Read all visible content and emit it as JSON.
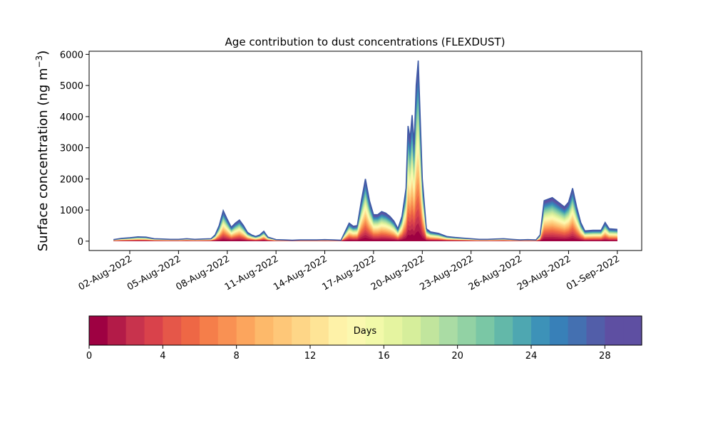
{
  "chart_data": {
    "type": "area",
    "title": "Age contribution to dust concentrations (FLEXDUST)",
    "ylabel": "Surface concentration (ng m",
    "ylabel_sup": "−3",
    "ylabel_close": ")",
    "xlabel": "",
    "ylim": [
      -300,
      6100
    ],
    "xlim": [
      "2022-07-30T12:00",
      "2022-09-02T12:00"
    ],
    "yticks": [
      0,
      1000,
      2000,
      3000,
      4000,
      5000,
      6000
    ],
    "xticks": [
      {
        "date": "2022-08-02",
        "label": "02-Aug-2022"
      },
      {
        "date": "2022-08-05",
        "label": "05-Aug-2022"
      },
      {
        "date": "2022-08-08",
        "label": "08-Aug-2022"
      },
      {
        "date": "2022-08-11",
        "label": "11-Aug-2022"
      },
      {
        "date": "2022-08-14",
        "label": "14-Aug-2022"
      },
      {
        "date": "2022-08-17",
        "label": "17-Aug-2022"
      },
      {
        "date": "2022-08-20",
        "label": "20-Aug-2022"
      },
      {
        "date": "2022-08-23",
        "label": "23-Aug-2022"
      },
      {
        "date": "2022-08-26",
        "label": "26-Aug-2022"
      },
      {
        "date": "2022-08-29",
        "label": "29-Aug-2022"
      },
      {
        "date": "2022-09-01",
        "label": "01-Sep-2022"
      }
    ],
    "stacking": "cumulative by age, 30 one-day bins (0–30 days)",
    "total": {
      "x": [
        "2022-08-01T00:00",
        "2022-08-01T12:00",
        "2022-08-02T00:00",
        "2022-08-02T12:00",
        "2022-08-03T00:00",
        "2022-08-03T12:00",
        "2022-08-04T00:00",
        "2022-08-04T12:00",
        "2022-08-05T00:00",
        "2022-08-05T12:00",
        "2022-08-06T00:00",
        "2022-08-06T12:00",
        "2022-08-07T00:00",
        "2022-08-07T06:00",
        "2022-08-07T12:00",
        "2022-08-07T18:00",
        "2022-08-08T00:00",
        "2022-08-08T06:00",
        "2022-08-08T12:00",
        "2022-08-08T18:00",
        "2022-08-09T00:00",
        "2022-08-09T06:00",
        "2022-08-09T12:00",
        "2022-08-09T18:00",
        "2022-08-10T00:00",
        "2022-08-10T06:00",
        "2022-08-10T12:00",
        "2022-08-11T00:00",
        "2022-08-11T12:00",
        "2022-08-12T00:00",
        "2022-08-12T12:00",
        "2022-08-13T00:00",
        "2022-08-13T12:00",
        "2022-08-14T00:00",
        "2022-08-14T12:00",
        "2022-08-15T00:00",
        "2022-08-15T12:00",
        "2022-08-15T18:00",
        "2022-08-16T00:00",
        "2022-08-16T06:00",
        "2022-08-16T12:00",
        "2022-08-16T18:00",
        "2022-08-17T00:00",
        "2022-08-17T06:00",
        "2022-08-17T12:00",
        "2022-08-17T18:00",
        "2022-08-18T00:00",
        "2022-08-18T06:00",
        "2022-08-18T12:00",
        "2022-08-18T18:00",
        "2022-08-19T00:00",
        "2022-08-19T03:00",
        "2022-08-19T06:00",
        "2022-08-19T09:00",
        "2022-08-19T12:00",
        "2022-08-19T15:00",
        "2022-08-19T18:00",
        "2022-08-20T00:00",
        "2022-08-20T06:00",
        "2022-08-20T12:00",
        "2022-08-21T00:00",
        "2022-08-21T12:00",
        "2022-08-22T00:00",
        "2022-08-22T12:00",
        "2022-08-23T00:00",
        "2022-08-23T12:00",
        "2022-08-24T00:00",
        "2022-08-24T12:00",
        "2022-08-25T00:00",
        "2022-08-25T12:00",
        "2022-08-26T00:00",
        "2022-08-26T12:00",
        "2022-08-27T00:00",
        "2022-08-27T06:00",
        "2022-08-27T12:00",
        "2022-08-28T00:00",
        "2022-08-28T12:00",
        "2022-08-28T18:00",
        "2022-08-29T00:00",
        "2022-08-29T06:00",
        "2022-08-29T12:00",
        "2022-08-29T18:00",
        "2022-08-30T00:00",
        "2022-08-30T12:00",
        "2022-08-31T00:00",
        "2022-08-31T06:00",
        "2022-08-31T12:00",
        "2022-09-01T00:00"
      ],
      "values": [
        50,
        90,
        110,
        140,
        130,
        80,
        70,
        60,
        60,
        80,
        60,
        70,
        80,
        200,
        500,
        980,
        700,
        450,
        580,
        680,
        500,
        280,
        200,
        150,
        200,
        320,
        130,
        50,
        40,
        30,
        40,
        40,
        40,
        50,
        40,
        30,
        580,
        480,
        500,
        1300,
        2000,
        1300,
        850,
        850,
        950,
        900,
        800,
        650,
        400,
        800,
        1700,
        3700,
        3300,
        4050,
        3100,
        5000,
        5800,
        2000,
        400,
        300,
        250,
        150,
        120,
        100,
        80,
        60,
        60,
        70,
        80,
        60,
        40,
        50,
        40,
        200,
        1300,
        1400,
        1200,
        1100,
        1250,
        1700,
        1100,
        600,
        330,
        350,
        350,
        600,
        400,
        380
      ]
    },
    "colorbar": {
      "label": "Days",
      "min": 0,
      "max": 30,
      "bins": 30,
      "ticks": [
        0,
        4,
        8,
        12,
        16,
        20,
        24,
        28
      ],
      "colors": [
        "#9e0142",
        "#b31b48",
        "#c8334d",
        "#d9424b",
        "#e55749",
        "#ee6745",
        "#f57e4a",
        "#f99153",
        "#fca55d",
        "#fdb96a",
        "#fec778",
        "#fed687",
        "#fee496",
        "#fef2a8",
        "#fbf8b0",
        "#f2f9a9",
        "#e5f4a0",
        "#d6ee9b",
        "#c1e59d",
        "#aadca4",
        "#92d2a4",
        "#7ac7a5",
        "#63b8a9",
        "#4ea7b1",
        "#3d92b8",
        "#3880b8",
        "#4470b1",
        "#525ea9",
        "#5e4fa2",
        "#5e4fa2"
      ]
    }
  }
}
